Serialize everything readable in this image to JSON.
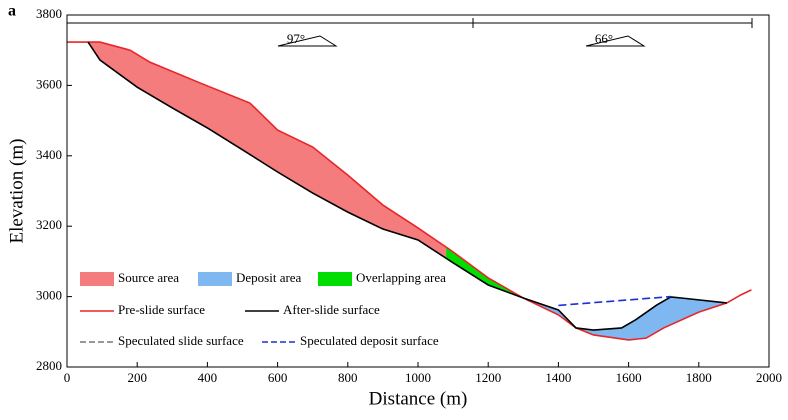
{
  "chart_data": {
    "type": "line",
    "panel_label": "a",
    "xlabel": "Distance (m)",
    "ylabel": "Elevation (m)",
    "xlim": [
      0,
      2000
    ],
    "xticks": [
      0,
      200,
      400,
      600,
      800,
      1000,
      1200,
      1400,
      1600,
      1800,
      2000
    ],
    "ylim": [
      2800,
      3800
    ],
    "yticks": [
      2800,
      3000,
      3200,
      3400,
      3600,
      3800
    ],
    "annotations": [
      "97°",
      "66°"
    ],
    "series": [
      {
        "name": "Pre-slide surface",
        "color": "#e8262a",
        "dash": false,
        "x": [
          0,
          94,
          180,
          236,
          379,
          521,
          600,
          700,
          800,
          900,
          1000,
          1100,
          1200,
          1300,
          1400,
          1450,
          1500,
          1600,
          1650,
          1700,
          1800,
          1880,
          1920,
          1950
        ],
        "values": [
          3723,
          3723,
          3700,
          3666,
          3607,
          3550,
          3473,
          3425,
          3345,
          3260,
          3195,
          3127,
          3053,
          2996,
          2948,
          2911,
          2891,
          2877,
          2882,
          2911,
          2956,
          2982,
          3005,
          3019
        ]
      },
      {
        "name": "After-slide surface",
        "color": "#000000",
        "dash": false,
        "x": [
          60,
          94,
          200,
          300,
          400,
          500,
          600,
          700,
          800,
          900,
          1000,
          1100,
          1200,
          1300,
          1400,
          1450,
          1500,
          1580,
          1620,
          1680,
          1720,
          1750,
          1880
        ],
        "values": [
          3723,
          3672,
          3595,
          3536,
          3479,
          3417,
          3354,
          3294,
          3240,
          3192,
          3161,
          3096,
          3033,
          2996,
          2962,
          2911,
          2905,
          2911,
          2934,
          2976,
          2999,
          2996,
          2982
        ]
      },
      {
        "name": "Speculated slide surface",
        "color": "#777777",
        "dash": true,
        "x": [],
        "values": []
      },
      {
        "name": "Speculated deposit surface",
        "color": "#1f2fd6",
        "dash": true,
        "x": [
          1400,
          1720
        ],
        "values": [
          2975,
          3000
        ]
      }
    ],
    "areas": [
      {
        "name": "Source area",
        "color": "#f47c7c",
        "range": [
          0,
          1080
        ]
      },
      {
        "name": "Deposit area",
        "color": "#7fb7f0",
        "range": [
          1330,
          1880
        ]
      },
      {
        "name": "Overlapping area",
        "color": "#00dd00",
        "range": [
          1080,
          1330
        ]
      }
    ]
  }
}
